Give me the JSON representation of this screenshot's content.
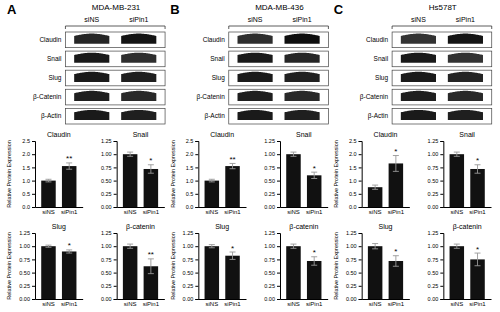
{
  "chart_data": [
    {
      "type": "blot",
      "title": "MDA-MB-231",
      "annotations": [
        {
          "text": "A"
        }
      ],
      "categories": [
        "Claudin",
        "Snail",
        "Slug",
        "β-Catenin",
        "β-Actin"
      ],
      "series": [
        {
          "name": "siNS",
          "values": [
            0.15,
            0.1,
            0.1,
            0.12,
            0.1
          ]
        },
        {
          "name": "siPin1",
          "values": [
            0.08,
            0.18,
            0.12,
            0.16,
            0.12
          ]
        }
      ]
    },
    {
      "type": "bar",
      "title": "Claudin",
      "ylabel": "Relative Protein Expression",
      "categories": [
        "siNS",
        "siPin1"
      ],
      "values": [
        1.0,
        1.55
      ],
      "errors": [
        0.05,
        0.12
      ],
      "color": "#111111",
      "annotations": [
        {
          "text": "**",
          "category": "siPin1"
        }
      ],
      "ylim": [
        0,
        2.5
      ],
      "yticks": [
        {
          "value": 0,
          "label": "0.0"
        },
        0.5,
        {
          "value": 1,
          "label": "1.0"
        },
        1.5,
        {
          "value": 2,
          "label": "2.0"
        },
        2.5
      ]
    },
    {
      "type": "bar",
      "title": "Snail",
      "categories": [
        "siNS",
        "siPin1"
      ],
      "values": [
        1.0,
        0.72
      ],
      "errors": [
        0.04,
        0.08
      ],
      "color": "#111111",
      "annotations": [
        {
          "text": "*",
          "category": "siPin1"
        }
      ],
      "ylim": [
        0,
        1.25
      ],
      "yticks": [
        {
          "value": 0,
          "label": "0.00"
        },
        0.25,
        {
          "value": 0.5,
          "label": "0.50"
        },
        0.75,
        {
          "value": 1,
          "label": "1.00"
        },
        1.25
      ]
    },
    {
      "type": "bar",
      "title": "Slug",
      "ylabel": "Relative Protein Expression",
      "categories": [
        "siNS",
        "siPin1"
      ],
      "values": [
        1.0,
        0.9
      ],
      "errors": [
        0.02,
        0.03
      ],
      "color": "#111111",
      "annotations": [
        {
          "text": "*",
          "category": "siPin1"
        }
      ],
      "ylim": [
        0,
        1.25
      ],
      "yticks": [
        {
          "value": 0,
          "label": "0.00"
        },
        0.25,
        {
          "value": 0.5,
          "label": "0.50"
        },
        0.75,
        {
          "value": 1,
          "label": "1.00"
        },
        1.25
      ]
    },
    {
      "type": "bar",
      "title": "β-catenin",
      "categories": [
        "siNS",
        "siPin1"
      ],
      "values": [
        1.0,
        0.62
      ],
      "errors": [
        0.04,
        0.14
      ],
      "color": "#111111",
      "annotations": [
        {
          "text": "**",
          "category": "siPin1"
        }
      ],
      "ylim": [
        0,
        1.25
      ],
      "yticks": [
        {
          "value": 0,
          "label": "0.00"
        },
        0.25,
        {
          "value": 0.5,
          "label": "0.50"
        },
        0.75,
        {
          "value": 1,
          "label": "1.00"
        },
        1.25
      ]
    },
    {
      "type": "blot",
      "title": "MDA-MB-436",
      "annotations": [
        {
          "text": "B"
        }
      ],
      "categories": [
        "Claudin",
        "Snail",
        "Slug",
        "β-Catenin",
        "β-Actin"
      ],
      "series": [
        {
          "name": "siNS",
          "values": [
            0.18,
            0.1,
            0.1,
            0.12,
            0.1
          ]
        },
        {
          "name": "siPin1",
          "values": [
            0.06,
            0.15,
            0.13,
            0.16,
            0.12
          ]
        }
      ]
    },
    {
      "type": "bar",
      "title": "Claudin",
      "ylabel": "Relative Protein Expression",
      "categories": [
        "siNS",
        "siPin1"
      ],
      "values": [
        1.0,
        1.55
      ],
      "errors": [
        0.05,
        0.1
      ],
      "color": "#111111",
      "annotations": [
        {
          "text": "**",
          "category": "siPin1"
        }
      ],
      "ylim": [
        0,
        2.5
      ],
      "yticks": [
        {
          "value": 0,
          "label": "0.0"
        },
        0.5,
        {
          "value": 1,
          "label": "1.0"
        },
        1.5,
        {
          "value": 2,
          "label": "2.0"
        },
        2.5
      ]
    },
    {
      "type": "bar",
      "title": "Snail",
      "categories": [
        "siNS",
        "siPin1"
      ],
      "values": [
        1.0,
        0.6
      ],
      "errors": [
        0.04,
        0.06
      ],
      "color": "#111111",
      "annotations": [
        {
          "text": "*",
          "category": "siPin1"
        }
      ],
      "ylim": [
        0,
        1.25
      ],
      "yticks": [
        {
          "value": 0,
          "label": "0.00"
        },
        0.25,
        {
          "value": 0.5,
          "label": "0.50"
        },
        0.75,
        {
          "value": 1,
          "label": "1.00"
        },
        1.25
      ]
    },
    {
      "type": "bar",
      "title": "Slug",
      "ylabel": "Relative Protein Expression",
      "categories": [
        "siNS",
        "siPin1"
      ],
      "values": [
        1.0,
        0.82
      ],
      "errors": [
        0.03,
        0.07
      ],
      "color": "#111111",
      "annotations": [
        {
          "text": "*",
          "category": "siPin1"
        }
      ],
      "ylim": [
        0,
        1.25
      ],
      "yticks": [
        {
          "value": 0,
          "label": "0.00"
        },
        0.25,
        {
          "value": 0.5,
          "label": "0.50"
        },
        0.75,
        {
          "value": 1,
          "label": "1.00"
        },
        1.25
      ]
    },
    {
      "type": "bar",
      "title": "β-catenin",
      "categories": [
        "siNS",
        "siPin1"
      ],
      "values": [
        1.0,
        0.72
      ],
      "errors": [
        0.04,
        0.08
      ],
      "color": "#111111",
      "annotations": [
        {
          "text": "*",
          "category": "siPin1"
        }
      ],
      "ylim": [
        0,
        1.25
      ],
      "yticks": [
        {
          "value": 0,
          "label": "0.00"
        },
        0.25,
        {
          "value": 0.5,
          "label": "0.50"
        },
        0.75,
        {
          "value": 1,
          "label": "1.00"
        },
        1.25
      ]
    },
    {
      "type": "blot",
      "title": "Hs578T",
      "annotations": [
        {
          "text": "C"
        }
      ],
      "categories": [
        "Claudin",
        "Snail",
        "Slug",
        "β-Catenin",
        "β-Actin"
      ],
      "series": [
        {
          "name": "siNS",
          "values": [
            0.2,
            0.1,
            0.1,
            0.12,
            0.1
          ]
        },
        {
          "name": "siPin1",
          "values": [
            0.08,
            0.2,
            0.14,
            0.16,
            0.12
          ]
        }
      ]
    },
    {
      "type": "bar",
      "title": "Claudin",
      "ylabel": "Relative Protein Expression",
      "categories": [
        "siNS",
        "siPin1"
      ],
      "values": [
        0.75,
        1.65
      ],
      "errors": [
        0.08,
        0.3
      ],
      "color": "#111111",
      "annotations": [
        {
          "text": "*",
          "category": "siPin1"
        }
      ],
      "ylim": [
        0,
        2.5
      ],
      "yticks": [
        {
          "value": 0,
          "label": "0.0"
        },
        0.5,
        {
          "value": 1,
          "label": "1.0"
        },
        1.5,
        {
          "value": 2,
          "label": "2.0"
        },
        2.5
      ]
    },
    {
      "type": "bar",
      "title": "Snail",
      "categories": [
        "siNS",
        "siPin1"
      ],
      "values": [
        1.0,
        0.72
      ],
      "errors": [
        0.04,
        0.08
      ],
      "color": "#111111",
      "annotations": [
        {
          "text": "*",
          "category": "siPin1"
        }
      ],
      "ylim": [
        0,
        1.25
      ],
      "yticks": [
        {
          "value": 0,
          "label": "0.00"
        },
        0.25,
        {
          "value": 0.5,
          "label": "0.50"
        },
        0.75,
        {
          "value": 1,
          "label": "1.00"
        },
        1.25
      ]
    },
    {
      "type": "bar",
      "title": "Slug",
      "ylabel": "Relative Protein Expression",
      "categories": [
        "siNS",
        "siPin1"
      ],
      "values": [
        1.0,
        0.72
      ],
      "errors": [
        0.05,
        0.1
      ],
      "color": "#111111",
      "annotations": [
        {
          "text": "*",
          "category": "siPin1"
        }
      ],
      "ylim": [
        0,
        1.25
      ],
      "yticks": [
        {
          "value": 0,
          "label": "0.00"
        },
        0.25,
        {
          "value": 0.5,
          "label": "0.50"
        },
        0.75,
        {
          "value": 1,
          "label": "1.00"
        },
        1.25
      ]
    },
    {
      "type": "bar",
      "title": "β-catenin",
      "categories": [
        "siNS",
        "siPin1"
      ],
      "values": [
        1.0,
        0.75
      ],
      "errors": [
        0.04,
        0.12
      ],
      "color": "#111111",
      "annotations": [
        {
          "text": "*",
          "category": "siPin1"
        }
      ],
      "ylim": [
        0,
        1.25
      ],
      "yticks": [
        {
          "value": 0,
          "label": "0.00"
        },
        0.25,
        {
          "value": 0.5,
          "label": "0.50"
        },
        0.75,
        {
          "value": 1,
          "label": "1.00"
        },
        1.25
      ]
    }
  ]
}
